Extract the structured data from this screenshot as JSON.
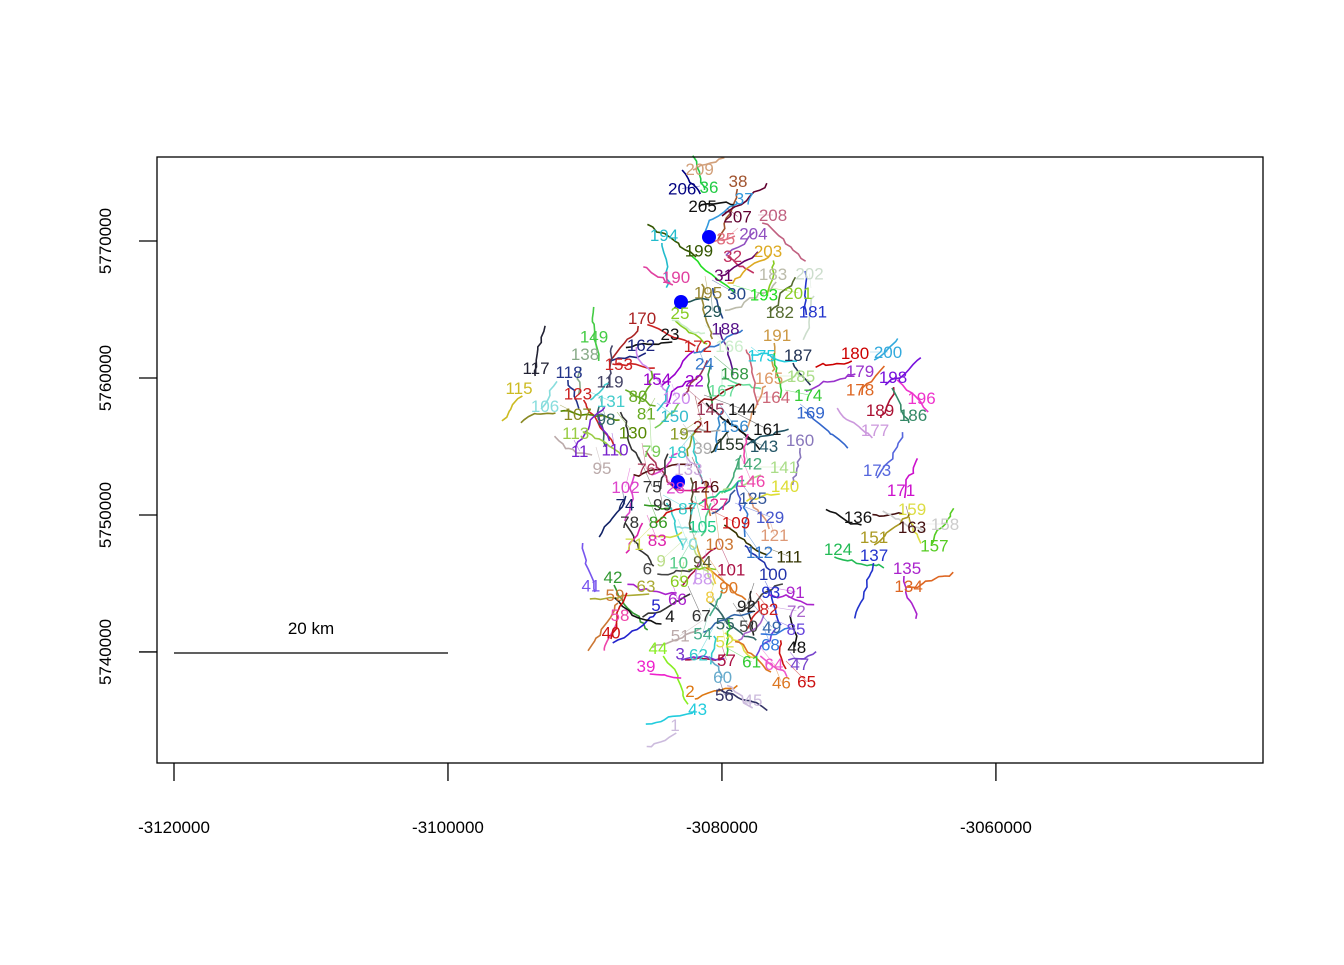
{
  "map": {
    "x_axis": {
      "ticks": [
        "-3120000",
        "-3100000",
        "-3080000",
        "-3060000"
      ],
      "tick_values": [
        -3120000,
        -3100000,
        -3080000,
        -3060000
      ]
    },
    "y_axis": {
      "ticks": [
        "5740000",
        "5750000",
        "5760000",
        "5770000"
      ],
      "tick_values": [
        5740000,
        5750000,
        5760000,
        5770000
      ]
    },
    "xlim": [
      -3121240,
      -3040500
    ],
    "ylim": [
      5731900,
      5776130
    ],
    "scale_bar": {
      "label": "20 km",
      "length_m": 20000
    },
    "point_color": "#0000ff",
    "point_count": 3,
    "labels": [
      {
        "t": "209",
        "c": "#d2a07a"
      },
      {
        "t": "36",
        "c": "#22cc44"
      },
      {
        "t": "38",
        "c": "#a0522d"
      },
      {
        "t": "206",
        "c": "#000080"
      },
      {
        "t": "37",
        "c": "#3399dd"
      },
      {
        "t": "205",
        "c": "#111111"
      },
      {
        "t": "207",
        "c": "#600030"
      },
      {
        "t": "208",
        "c": "#c06080"
      },
      {
        "t": "204",
        "c": "#9050c0"
      },
      {
        "t": "35",
        "c": "#e07080"
      },
      {
        "t": "194",
        "c": "#22bbcc"
      },
      {
        "t": "199",
        "c": "#335500"
      },
      {
        "t": "32",
        "c": "#c03060"
      },
      {
        "t": "203",
        "c": "#ddaa22"
      },
      {
        "t": "31",
        "c": "#660066"
      },
      {
        "t": "190",
        "c": "#e040a0"
      },
      {
        "t": "195",
        "c": "#998833"
      },
      {
        "t": "30",
        "c": "#224488"
      },
      {
        "t": "183",
        "c": "#bbbbaa"
      },
      {
        "t": "29",
        "c": "#225555"
      },
      {
        "t": "193",
        "c": "#22dd22"
      },
      {
        "t": "201",
        "c": "#88cc22"
      },
      {
        "t": "202",
        "c": "#ccddcc"
      },
      {
        "t": "182",
        "c": "#556b2f"
      },
      {
        "t": "181",
        "c": "#2233cc"
      },
      {
        "t": "170",
        "c": "#aa2222"
      },
      {
        "t": "188",
        "c": "#551188"
      },
      {
        "t": "25",
        "c": "#88cc22"
      },
      {
        "t": "23",
        "c": "#111111"
      },
      {
        "t": "172",
        "c": "#cc2222"
      },
      {
        "t": "166",
        "c": "#cceecc"
      },
      {
        "t": "191",
        "c": "#cc9944"
      },
      {
        "t": "162",
        "c": "#1a237e"
      },
      {
        "t": "24",
        "c": "#3377cc"
      },
      {
        "t": "175",
        "c": "#22ccdd"
      },
      {
        "t": "187",
        "c": "#223355"
      },
      {
        "t": "168",
        "c": "#339944"
      },
      {
        "t": "180",
        "c": "#cc0000"
      },
      {
        "t": "200",
        "c": "#33aadd"
      },
      {
        "t": "117",
        "c": "#222233"
      },
      {
        "t": "118",
        "c": "#223388"
      },
      {
        "t": "138",
        "c": "#88aa88"
      },
      {
        "t": "149",
        "c": "#44cc44"
      },
      {
        "t": "153",
        "c": "#cc2222"
      },
      {
        "t": "22",
        "c": "#9900cc"
      },
      {
        "t": "167",
        "c": "#66dd99"
      },
      {
        "t": "179",
        "c": "#9933cc"
      },
      {
        "t": "198",
        "c": "#7711dd"
      },
      {
        "t": "115",
        "c": "#ccbb22"
      },
      {
        "t": "119",
        "c": "#444466"
      },
      {
        "t": "154",
        "c": "#9900cc"
      },
      {
        "t": "120",
        "c": "#cc88ee"
      },
      {
        "t": "145",
        "c": "#993355"
      },
      {
        "t": "165",
        "c": "#dd9966"
      },
      {
        "t": "185",
        "c": "#aadd88"
      },
      {
        "t": "178",
        "c": "#dd6622"
      },
      {
        "t": "123",
        "c": "#cc2222"
      },
      {
        "t": "131",
        "c": "#44cccc"
      },
      {
        "t": "106",
        "c": "#88dddd"
      },
      {
        "t": "107",
        "c": "#888822"
      },
      {
        "t": "98",
        "c": "#336666"
      },
      {
        "t": "80",
        "c": "#66aa22"
      },
      {
        "t": "81",
        "c": "#66aa22"
      },
      {
        "t": "150",
        "c": "#33bbcc"
      },
      {
        "t": "144",
        "c": "#111111"
      },
      {
        "t": "21",
        "c": "#881111"
      },
      {
        "t": "164",
        "c": "#cc6677"
      },
      {
        "t": "174",
        "c": "#33cc33"
      },
      {
        "t": "156",
        "c": "#3388cc"
      },
      {
        "t": "169",
        "c": "#3366cc"
      },
      {
        "t": "189",
        "c": "#aa1133"
      },
      {
        "t": "186",
        "c": "#338866"
      },
      {
        "t": "196",
        "c": "#ee33cc"
      },
      {
        "t": "130",
        "c": "#558800"
      },
      {
        "t": "161",
        "c": "#111111"
      },
      {
        "t": "19",
        "c": "#889922"
      },
      {
        "t": "155",
        "c": "#223322"
      },
      {
        "t": "113",
        "c": "#99cc44"
      },
      {
        "t": "79",
        "c": "#77cc55"
      },
      {
        "t": "39",
        "c": "#aaaaaa"
      },
      {
        "t": "18",
        "c": "#33cccc"
      },
      {
        "t": "177",
        "c": "#cc99dd"
      },
      {
        "t": "110",
        "c": "#7722cc"
      },
      {
        "t": "11",
        "c": "#7722cc"
      },
      {
        "t": "143",
        "c": "#225566"
      },
      {
        "t": "160",
        "c": "#8877bb"
      },
      {
        "t": "95",
        "c": "#bbaaaa"
      },
      {
        "t": "76",
        "c": "#aa3355"
      },
      {
        "t": "133",
        "c": "#ccaadd"
      },
      {
        "t": "142",
        "c": "#44aa77"
      },
      {
        "t": "75",
        "c": "#333333"
      },
      {
        "t": "126",
        "c": "#551111"
      },
      {
        "t": "146",
        "c": "#ee44aa"
      },
      {
        "t": "141",
        "c": "#aadd88"
      },
      {
        "t": "173",
        "c": "#5566dd"
      },
      {
        "t": "102",
        "c": "#dd44cc"
      },
      {
        "t": "28",
        "c": "#dd44cc"
      },
      {
        "t": "127",
        "c": "#dd2288"
      },
      {
        "t": "74",
        "c": "#112266"
      },
      {
        "t": "99",
        "c": "#333333"
      },
      {
        "t": "125",
        "c": "#335599"
      },
      {
        "t": "140",
        "c": "#dddd33"
      },
      {
        "t": "171",
        "c": "#cc11cc"
      },
      {
        "t": "86",
        "c": "#339922"
      },
      {
        "t": "87",
        "c": "#33cccc"
      },
      {
        "t": "105",
        "c": "#22cc88"
      },
      {
        "t": "109",
        "c": "#cc1111"
      },
      {
        "t": "129",
        "c": "#4455cc"
      },
      {
        "t": "159",
        "c": "#dddd44"
      },
      {
        "t": "163",
        "c": "#441111"
      },
      {
        "t": "103",
        "c": "#cc7733"
      },
      {
        "t": "78",
        "c": "#333333"
      },
      {
        "t": "83",
        "c": "#dd22aa"
      },
      {
        "t": "136",
        "c": "#111111"
      },
      {
        "t": "158",
        "c": "#cccccc"
      },
      {
        "t": "70",
        "c": "#88dddd"
      },
      {
        "t": "94",
        "c": "#555533"
      },
      {
        "t": "121",
        "c": "#dd9977"
      },
      {
        "t": "71",
        "c": "#ccdd44"
      },
      {
        "t": "112",
        "c": "#3377cc"
      },
      {
        "t": "10",
        "c": "#55cc88"
      },
      {
        "t": "151",
        "c": "#aa9922"
      },
      {
        "t": "157",
        "c": "#55cc22"
      },
      {
        "t": "9",
        "c": "#bbdd88"
      },
      {
        "t": "101",
        "c": "#aa1144"
      },
      {
        "t": "124",
        "c": "#22bb55"
      },
      {
        "t": "111",
        "c": "#333300"
      },
      {
        "t": "137",
        "c": "#2233cc"
      },
      {
        "t": "88",
        "c": "#cc99ee"
      },
      {
        "t": "69",
        "c": "#88cc22"
      },
      {
        "t": "90",
        "c": "#dd7722"
      },
      {
        "t": "100",
        "c": "#2233aa"
      },
      {
        "t": "6",
        "c": "#444444"
      },
      {
        "t": "135",
        "c": "#aa22cc"
      },
      {
        "t": "134",
        "c": "#dd6622"
      },
      {
        "t": "8",
        "c": "#eecc44"
      },
      {
        "t": "42",
        "c": "#339933"
      },
      {
        "t": "41",
        "c": "#7755ee"
      },
      {
        "t": "63",
        "c": "#aaaa33"
      },
      {
        "t": "66",
        "c": "#aa22cc"
      },
      {
        "t": "67",
        "c": "#333333"
      },
      {
        "t": "93",
        "c": "#2233cc"
      },
      {
        "t": "92",
        "c": "#222222"
      },
      {
        "t": "91",
        "c": "#aa22cc"
      },
      {
        "t": "59",
        "c": "#cc7733"
      },
      {
        "t": "55",
        "c": "#336666"
      },
      {
        "t": "82",
        "c": "#cc2222"
      },
      {
        "t": "50",
        "c": "#444444"
      },
      {
        "t": "49",
        "c": "#3366aa"
      },
      {
        "t": "72",
        "c": "#aa66cc"
      },
      {
        "t": "5",
        "c": "#2222cc"
      },
      {
        "t": "4",
        "c": "#111111"
      },
      {
        "t": "54",
        "c": "#44aa88"
      },
      {
        "t": "58",
        "c": "#ee44aa"
      },
      {
        "t": "85",
        "c": "#6644dd"
      },
      {
        "t": "51",
        "c": "#bbaaaa"
      },
      {
        "t": "52",
        "c": "#dddd44"
      },
      {
        "t": "62",
        "c": "#33cccc"
      },
      {
        "t": "68",
        "c": "#3377dd"
      },
      {
        "t": "40",
        "c": "#cc1111"
      },
      {
        "t": "48",
        "c": "#111111"
      },
      {
        "t": "57",
        "c": "#aa1144"
      },
      {
        "t": "61",
        "c": "#33cc33"
      },
      {
        "t": "64",
        "c": "#ee55cc"
      },
      {
        "t": "44",
        "c": "#88ee22"
      },
      {
        "t": "3",
        "c": "#7733cc"
      },
      {
        "t": "47",
        "c": "#7744cc"
      },
      {
        "t": "46",
        "c": "#dd7722"
      },
      {
        "t": "65",
        "c": "#cc1111"
      },
      {
        "t": "39",
        "c": "#ee22cc"
      },
      {
        "t": "60",
        "c": "#66aacc"
      },
      {
        "t": "56",
        "c": "#333366"
      },
      {
        "t": "2",
        "c": "#dd7711"
      },
      {
        "t": "43",
        "c": "#22ccdd"
      },
      {
        "t": "45",
        "c": "#ccbbdd"
      },
      {
        "t": "1",
        "c": "#ccbbdd"
      }
    ]
  }
}
